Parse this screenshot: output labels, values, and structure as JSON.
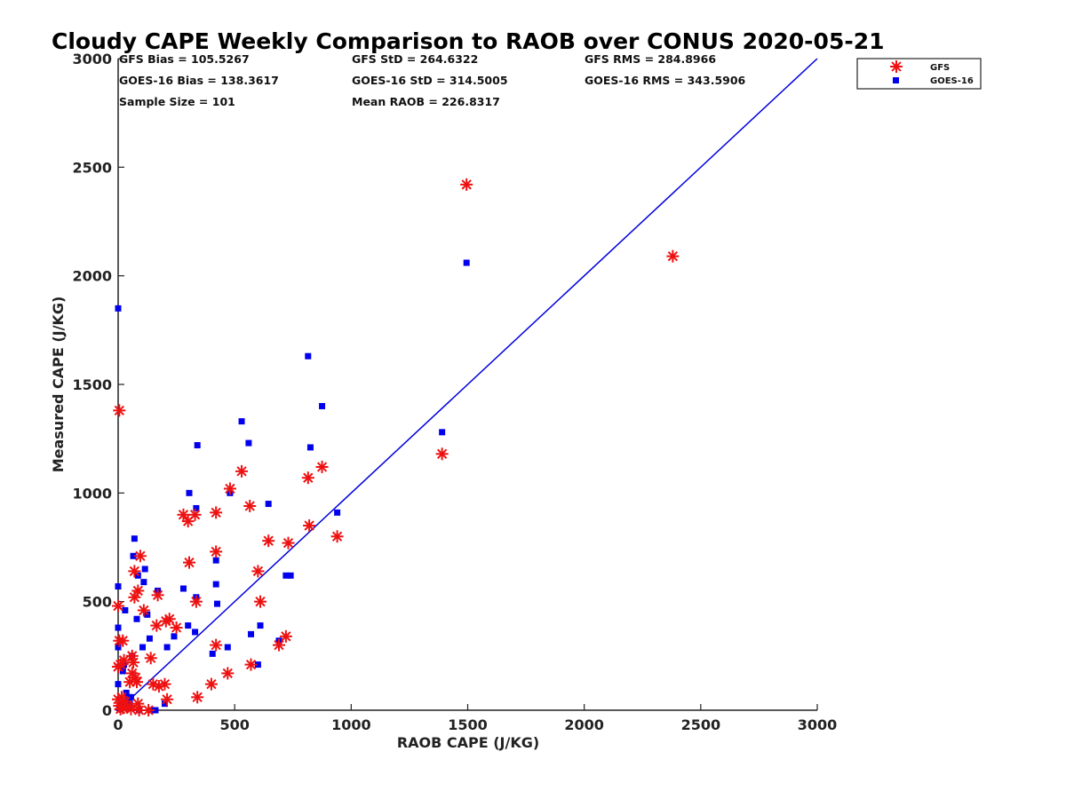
{
  "chart_data": {
    "type": "scatter",
    "title": "Cloudy CAPE Weekly Comparison to RAOB over CONUS 2020-05-21",
    "xlabel": "RAOB CAPE (J/KG)",
    "ylabel": "Measured CAPE (J/KG)",
    "xlim": [
      0,
      3000
    ],
    "ylim": [
      0,
      3000
    ],
    "xticks": [
      "0",
      "500",
      "1000",
      "1500",
      "2000",
      "2500",
      "3000"
    ],
    "yticks": [
      "0",
      "500",
      "1000",
      "1500",
      "2000",
      "2500",
      "3000"
    ],
    "grid": false,
    "legend_position": "top-right",
    "stats": [
      [
        "GFS Bias = 105.5267",
        "GFS StD = 264.6322",
        "GFS RMS = 284.8966"
      ],
      [
        "GOES-16 Bias = 138.3617",
        "GOES-16 StD = 314.5005",
        "GOES-16 RMS = 343.5906"
      ],
      [
        "Sample Size = 101",
        "Mean RAOB = 226.8317",
        ""
      ]
    ],
    "reference_line": {
      "x": [
        0,
        3000
      ],
      "y": [
        0,
        3000
      ],
      "color": "#0000dd"
    },
    "series": [
      {
        "name": "GFS",
        "marker": "asterisk",
        "color": "#ee1111",
        "points": [
          [
            5,
            1380
          ],
          [
            0,
            480
          ],
          [
            5,
            320
          ],
          [
            20,
            320
          ],
          [
            0,
            200
          ],
          [
            10,
            210
          ],
          [
            25,
            230
          ],
          [
            0,
            50
          ],
          [
            5,
            20
          ],
          [
            10,
            5
          ],
          [
            15,
            60
          ],
          [
            20,
            10
          ],
          [
            30,
            40
          ],
          [
            40,
            20
          ],
          [
            50,
            130
          ],
          [
            55,
            5
          ],
          [
            60,
            250
          ],
          [
            65,
            220
          ],
          [
            75,
            150
          ],
          [
            80,
            130
          ],
          [
            85,
            30
          ],
          [
            90,
            0
          ],
          [
            70,
            520
          ],
          [
            85,
            550
          ],
          [
            70,
            640
          ],
          [
            95,
            710
          ],
          [
            110,
            460
          ],
          [
            140,
            240
          ],
          [
            150,
            120
          ],
          [
            165,
            390
          ],
          [
            170,
            530
          ],
          [
            175,
            110
          ],
          [
            200,
            120
          ],
          [
            205,
            410
          ],
          [
            220,
            420
          ],
          [
            210,
            50
          ],
          [
            250,
            380
          ],
          [
            280,
            900
          ],
          [
            300,
            870
          ],
          [
            305,
            680
          ],
          [
            330,
            900
          ],
          [
            335,
            500
          ],
          [
            340,
            60
          ],
          [
            400,
            120
          ],
          [
            420,
            910
          ],
          [
            420,
            730
          ],
          [
            420,
            300
          ],
          [
            470,
            170
          ],
          [
            480,
            1020
          ],
          [
            530,
            1100
          ],
          [
            565,
            940
          ],
          [
            570,
            210
          ],
          [
            600,
            640
          ],
          [
            610,
            500
          ],
          [
            645,
            780
          ],
          [
            690,
            300
          ],
          [
            720,
            340
          ],
          [
            730,
            770
          ],
          [
            815,
            1070
          ],
          [
            820,
            850
          ],
          [
            875,
            1120
          ],
          [
            940,
            800
          ],
          [
            1390,
            1180
          ],
          [
            1495,
            2420
          ],
          [
            2380,
            2090
          ],
          [
            130,
            0
          ],
          [
            60,
            170
          ]
        ]
      },
      {
        "name": "GOES-16",
        "marker": "square",
        "color": "#0000ee",
        "points": [
          [
            0,
            1850
          ],
          [
            0,
            570
          ],
          [
            0,
            380
          ],
          [
            0,
            290
          ],
          [
            0,
            120
          ],
          [
            5,
            10
          ],
          [
            10,
            5
          ],
          [
            15,
            30
          ],
          [
            20,
            200
          ],
          [
            25,
            210
          ],
          [
            30,
            460
          ],
          [
            35,
            80
          ],
          [
            40,
            20
          ],
          [
            45,
            60
          ],
          [
            50,
            30
          ],
          [
            55,
            60
          ],
          [
            60,
            250
          ],
          [
            65,
            710
          ],
          [
            70,
            790
          ],
          [
            80,
            420
          ],
          [
            85,
            620
          ],
          [
            90,
            0
          ],
          [
            105,
            290
          ],
          [
            110,
            590
          ],
          [
            115,
            650
          ],
          [
            125,
            440
          ],
          [
            135,
            330
          ],
          [
            145,
            0
          ],
          [
            160,
            0
          ],
          [
            170,
            550
          ],
          [
            200,
            30
          ],
          [
            210,
            290
          ],
          [
            240,
            340
          ],
          [
            280,
            560
          ],
          [
            300,
            390
          ],
          [
            305,
            1000
          ],
          [
            330,
            360
          ],
          [
            335,
            520
          ],
          [
            335,
            930
          ],
          [
            340,
            1220
          ],
          [
            405,
            260
          ],
          [
            420,
            690
          ],
          [
            420,
            580
          ],
          [
            425,
            490
          ],
          [
            470,
            290
          ],
          [
            480,
            1000
          ],
          [
            530,
            1330
          ],
          [
            560,
            1230
          ],
          [
            570,
            350
          ],
          [
            600,
            210
          ],
          [
            610,
            390
          ],
          [
            645,
            950
          ],
          [
            690,
            320
          ],
          [
            720,
            620
          ],
          [
            740,
            620
          ],
          [
            815,
            1630
          ],
          [
            825,
            1210
          ],
          [
            875,
            1400
          ],
          [
            940,
            910
          ],
          [
            1390,
            1280
          ],
          [
            1495,
            2060
          ],
          [
            20,
            180
          ]
        ]
      }
    ]
  }
}
